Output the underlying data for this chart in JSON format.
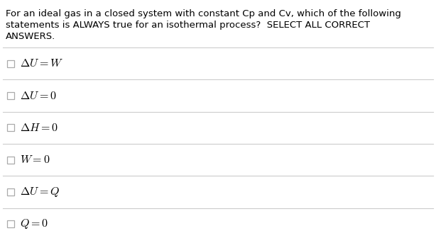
{
  "question_lines": [
    "For an ideal gas in a closed system with constant Cp and Cv, which of the following",
    "statements is ALWAYS true for an isothermal process?  SELECT ALL CORRECT",
    "ANSWERS."
  ],
  "options": [
    "$\\Delta U = W$",
    "$\\Delta U = 0$",
    "$\\Delta H = 0$",
    "$W = 0$",
    "$\\Delta U = Q$",
    "$Q = 0$"
  ],
  "bg_color": "#ffffff",
  "text_color": "#000000",
  "line_color": "#cccccc",
  "question_fontsize": 9.5,
  "option_fontsize": 11.5,
  "question_color": "#333333"
}
